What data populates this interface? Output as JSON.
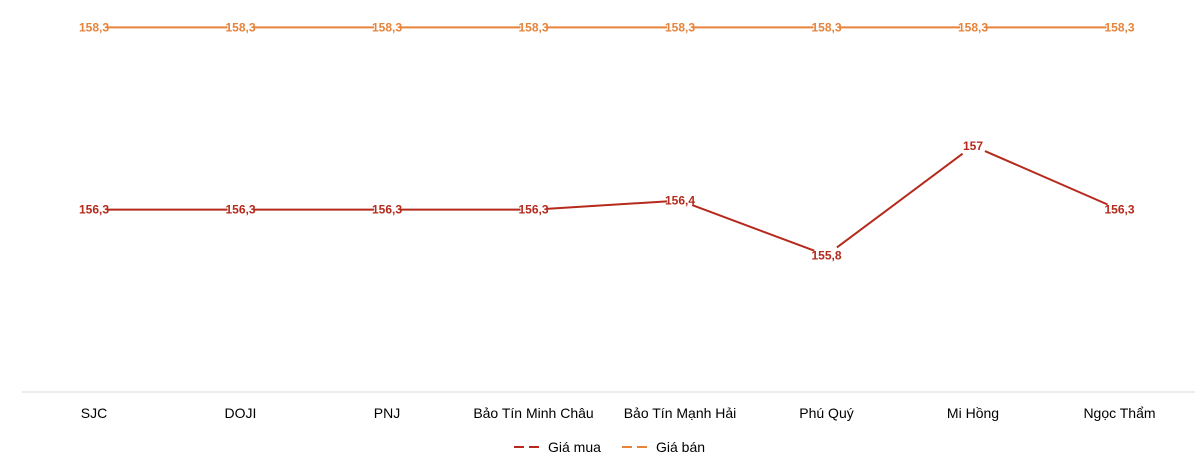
{
  "chart_data": {
    "type": "line",
    "categories": [
      "SJC",
      "DOJI",
      "PNJ",
      "Bảo Tín Minh Châu",
      "Bảo Tín Mạnh Hải",
      "Phú Quý",
      "Mi Hồng",
      "Ngọc Thẩm"
    ],
    "series": [
      {
        "name": "Giá mua",
        "color": "#B52A1C",
        "values": [
          156.3,
          156.3,
          156.3,
          156.3,
          156.4,
          155.8,
          157,
          156.3
        ],
        "labels": [
          "156,3",
          "156,3",
          "156,3",
          "156,3",
          "156,4",
          "155,8",
          "157",
          "156,3"
        ]
      },
      {
        "name": "Giá bán",
        "color": "#E8833A",
        "values": [
          158.3,
          158.3,
          158.3,
          158.3,
          158.3,
          158.3,
          158.3,
          158.3
        ],
        "labels": [
          "158,3",
          "158,3",
          "158,3",
          "158,3",
          "158,3",
          "158,3",
          "158,3",
          "158,3"
        ]
      }
    ],
    "ylim": [
      154.3,
      158.6
    ],
    "grid": false,
    "legend_position": "bottom"
  }
}
